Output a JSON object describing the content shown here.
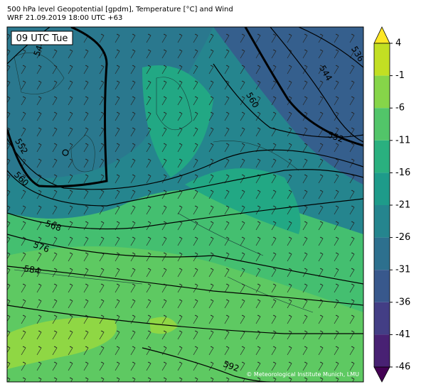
{
  "header": {
    "title": "500 hPa level Geopotential [gpdm], Temperature [°C] and Wind",
    "subtitle": "WRF 21.09.2019 18:00 UTC +63"
  },
  "map": {
    "time_label": "09 UTC Tue",
    "contour_labels": [
      "544",
      "536",
      "544",
      "560",
      "552",
      "552",
      "560",
      "568",
      "576",
      "584",
      "592"
    ],
    "credit": "© Meteorological Institute Munich, LMU"
  },
  "colorbar": {
    "ticks": [
      4,
      -1,
      -6,
      -11,
      -16,
      -21,
      -26,
      -31,
      -36,
      -41,
      -46
    ],
    "colors": [
      "#fde725",
      "#c2df23",
      "#86d549",
      "#52c569",
      "#2ab07f",
      "#1e9b8a",
      "#25858e",
      "#2d708e",
      "#38588c",
      "#433e85",
      "#482173",
      "#440154"
    ]
  }
}
